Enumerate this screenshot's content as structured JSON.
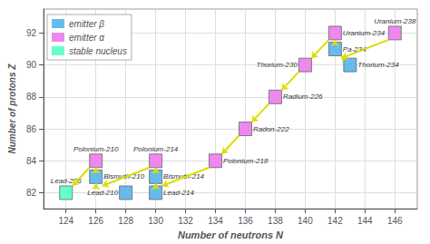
{
  "chart_data": {
    "type": "scatter",
    "marker": "square",
    "xlabel": "Number of neutrons N",
    "ylabel": "Number of protons Z",
    "xlim": [
      122.5,
      147.5
    ],
    "ylim": [
      81.0,
      93.5
    ],
    "xticks": [
      124,
      126,
      128,
      130,
      132,
      134,
      136,
      138,
      140,
      142,
      144,
      146
    ],
    "yticks": [
      82,
      84,
      86,
      88,
      90,
      92
    ],
    "grid": true,
    "legend": "upper left",
    "series": [
      {
        "name": "emitter β",
        "color": "#66bbee",
        "points": [
          {
            "label": "Bismuth-210",
            "x": 126,
            "y": 83
          },
          {
            "label": "Lead-210",
            "x": 128,
            "y": 82
          },
          {
            "label": "Bismuth-214",
            "x": 130,
            "y": 83
          },
          {
            "label": "Lead-214",
            "x": 130,
            "y": 82
          },
          {
            "label": "Pa-234",
            "x": 142,
            "y": 91
          },
          {
            "label": "Thorium-234",
            "x": 143,
            "y": 90
          }
        ]
      },
      {
        "name": "emitter α",
        "color": "#ee88ee",
        "points": [
          {
            "label": "Polonium-210",
            "x": 126,
            "y": 84
          },
          {
            "label": "Polonium-214",
            "x": 130,
            "y": 84
          },
          {
            "label": "Polonium-218",
            "x": 134,
            "y": 84
          },
          {
            "label": "Radon-222",
            "x": 136,
            "y": 86
          },
          {
            "label": "Radium-226",
            "x": 138,
            "y": 88
          },
          {
            "label": "Thorium-230",
            "x": 140,
            "y": 90
          },
          {
            "label": "Uranium-234",
            "x": 142,
            "y": 92
          },
          {
            "label": "Uranium-238",
            "x": 146,
            "y": 92
          }
        ]
      },
      {
        "name": "stable nucleus",
        "color": "#66ffcc",
        "points": [
          {
            "label": "Lead-206",
            "x": 124,
            "y": 82
          }
        ]
      }
    ],
    "arrows": {
      "color": "#dddd00",
      "alpha": [
        [
          146,
          92,
          142,
          90
        ],
        [
          142,
          92,
          140,
          90
        ],
        [
          140,
          90,
          138,
          88
        ],
        [
          138,
          88,
          136,
          86
        ],
        [
          136,
          86,
          134,
          84
        ],
        [
          134,
          84,
          130,
          82
        ],
        [
          130,
          84,
          126,
          82
        ],
        [
          126,
          84,
          124,
          82
        ]
      ],
      "beta": [
        [
          143,
          90,
          142,
          91
        ],
        [
          142,
          91,
          142,
          92
        ],
        [
          130,
          82,
          130,
          83
        ],
        [
          130,
          83,
          130,
          84
        ],
        [
          126,
          82,
          126,
          83
        ],
        [
          126,
          83,
          126,
          84
        ]
      ]
    }
  }
}
